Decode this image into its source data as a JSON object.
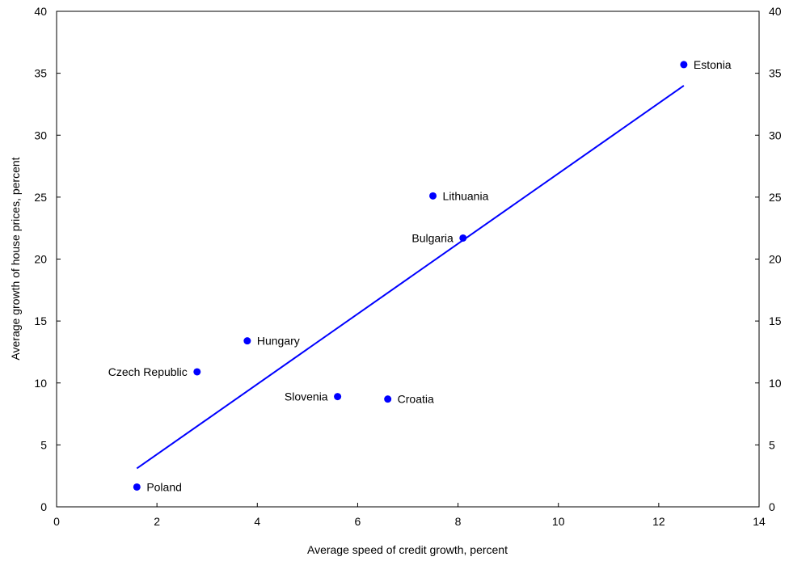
{
  "chart_data": {
    "type": "scatter",
    "title": "",
    "xlabel": "Average speed of credit growth, percent",
    "ylabel": "Average growth of house prices, percent",
    "xlim": [
      0,
      14
    ],
    "ylim": [
      0,
      40
    ],
    "xticks": [
      0,
      2,
      4,
      6,
      8,
      10,
      12,
      14
    ],
    "yticks": [
      0,
      5,
      10,
      15,
      20,
      25,
      30,
      35,
      40
    ],
    "grid": false,
    "legend": "none",
    "colors": {
      "points": "#0000ff",
      "trendline": "#0000ff",
      "axis": "#000000"
    },
    "points": [
      {
        "label": "Estonia",
        "x": 12.5,
        "y": 35.7,
        "label_side": "right"
      },
      {
        "label": "Lithuania",
        "x": 7.5,
        "y": 25.1,
        "label_side": "right"
      },
      {
        "label": "Bulgaria",
        "x": 8.1,
        "y": 21.7,
        "label_side": "left"
      },
      {
        "label": "Hungary",
        "x": 3.8,
        "y": 13.4,
        "label_side": "right"
      },
      {
        "label": "Czech Republic",
        "x": 2.8,
        "y": 10.9,
        "label_side": "left"
      },
      {
        "label": "Slovenia",
        "x": 5.6,
        "y": 8.9,
        "label_side": "left"
      },
      {
        "label": "Croatia",
        "x": 6.6,
        "y": 8.7,
        "label_side": "right"
      },
      {
        "label": "Poland",
        "x": 1.6,
        "y": 1.6,
        "label_side": "right"
      }
    ],
    "trendline": {
      "x": [
        1.6,
        12.5
      ],
      "y": [
        3.1,
        34.0
      ]
    }
  }
}
